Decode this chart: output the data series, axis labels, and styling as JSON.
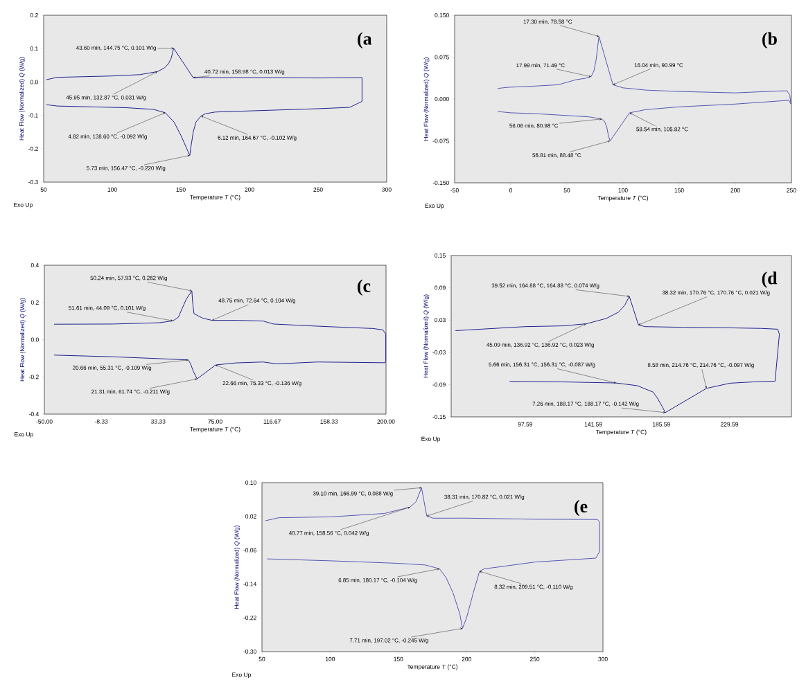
{
  "chart_data": [
    {
      "type": "line",
      "title": "(a",
      "xlabel": "Temperature *T* (°C)",
      "ylabel": "Heat Flow (Normalized) *Q* (W/g)",
      "color": "#1f1f8f",
      "xlim": [
        50,
        300
      ],
      "xticks": [
        50,
        100,
        150,
        200,
        250,
        300
      ],
      "ylim": [
        -0.3,
        0.2
      ],
      "yticks": [
        -0.3,
        -0.2,
        -0.1,
        {
          "value": 0,
          "label": "0.0"
        },
        0.1,
        0.2
      ],
      "x": [
        52,
        60,
        80,
        100,
        120,
        132.87,
        138,
        141,
        143,
        144.75,
        158.98,
        170,
        200,
        217,
        250,
        282,
        282,
        273,
        250,
        220,
        190,
        175,
        168,
        164.67,
        161,
        159,
        157.5,
        156.47,
        150,
        145,
        138.6,
        130,
        110,
        80,
        60,
        52
      ],
      "values": [
        0.007,
        0.014,
        0.016,
        0.018,
        0.022,
        0.031,
        0.042,
        0.055,
        0.072,
        0.101,
        0.013,
        0.013,
        0.013,
        0.013,
        0.012,
        0.013,
        -0.058,
        -0.076,
        -0.08,
        -0.084,
        -0.088,
        -0.09,
        -0.095,
        -0.102,
        -0.12,
        -0.15,
        -0.19,
        -0.22,
        -0.16,
        -0.12,
        -0.092,
        -0.082,
        -0.077,
        -0.074,
        -0.072,
        -0.068
      ],
      "annotations": [
        {
          "text": "43.60 min, 144.75 °C, 0.101 W/g",
          "x": 144.75,
          "y": 0.101
        },
        {
          "text": "40.72 min, 158.98 °C, 0.013 W/g",
          "x": 158.98,
          "y": 0.013
        },
        {
          "text": "45.95 min, 132.87 °C, 0.031 W/g",
          "x": 132.87,
          "y": 0.031
        },
        {
          "text": "4.82 min, 138.60 °C, -0.092 W/g",
          "x": 138.6,
          "y": -0.092
        },
        {
          "text": "6.12 min, 164.67 °C, -0.102 W/g",
          "x": 164.67,
          "y": -0.102
        },
        {
          "text": "5.73 min, 156.47 °C, -0.220 W/g",
          "x": 156.47,
          "y": -0.22
        },
        "Exo Up"
      ]
    },
    {
      "type": "line",
      "title": "(b",
      "xlabel": "Temperature *T* (°C)",
      "ylabel": "Heat Flow (Normalized) *Q* (W/g)",
      "color": "#5555b5",
      "xlim": [
        -50,
        250
      ],
      "xticks": [
        -50,
        0,
        50,
        100,
        150,
        200,
        250
      ],
      "ylim": [
        -0.15,
        0.15
      ],
      "yticks": [
        {
          "value": -0.15,
          "label": "-0.150"
        },
        -0.075,
        {
          "value": 0,
          "label": "0.000"
        },
        0.075,
        {
          "value": 0.15,
          "label": "0.150"
        }
      ],
      "x": [
        -11.5,
        -2.6,
        20,
        42,
        58,
        66,
        71.49,
        74,
        76,
        77.5,
        78.58,
        90.99,
        100,
        120,
        150,
        200,
        240,
        246,
        248.5,
        249.5,
        247.8,
        200,
        150,
        120,
        105.82,
        88.48,
        87,
        85.5,
        83.5,
        80.98,
        70,
        50,
        20,
        0,
        -11.5
      ],
      "values": [
        0.019,
        0.021,
        0.023,
        0.0255,
        0.0345,
        0.037,
        0.04,
        0.05,
        0.07,
        0.095,
        0.112,
        0.0255,
        0.02,
        0.016,
        0.0135,
        0.011,
        0.0145,
        0.0147,
        0.007,
        -0.009,
        -0.0023,
        -0.009,
        -0.014,
        -0.019,
        -0.0247,
        -0.075,
        -0.066,
        -0.05,
        -0.04,
        -0.0358,
        -0.032,
        -0.0295,
        -0.026,
        -0.0247,
        -0.0224
      ],
      "annotations": [
        {
          "text": "17.30 min, 78.58 °C",
          "x": 78.58,
          "y": 0.112
        },
        {
          "text": "17.99 min, 71.49 °C",
          "x": 71.49,
          "y": 0.04
        },
        {
          "text": "16.04 min, 90.99 °C",
          "x": 90.99,
          "y": 0.0255
        },
        {
          "text": "56.06 min, 80.98 °C",
          "x": 80.98,
          "y": -0.0358
        },
        {
          "text": "58.54 min, 105.82 °C",
          "x": 105.82,
          "y": -0.0247
        },
        {
          "text": "56.81 min, 88.48 °C",
          "x": 88.48,
          "y": -0.075
        },
        "Exo Up"
      ]
    },
    {
      "type": "line",
      "title": "(c",
      "xlabel": "Temperature *T* (°C)",
      "ylabel": "Heat Flow (Normalized) *Q* (W/g)",
      "color": "#1f1f8f",
      "xlim": [
        -50,
        200
      ],
      "xticks": [
        {
          "value": -50,
          "label": "-50.00"
        },
        -8.33,
        33.33,
        {
          "value": 75,
          "label": "75.00"
        },
        116.67,
        158.33,
        {
          "value": 200,
          "label": "200.00"
        }
      ],
      "ylim": [
        -0.4,
        0.4
      ],
      "yticks": [
        -0.4,
        -0.2,
        {
          "value": 0,
          "label": "0.0"
        },
        0.2,
        0.4
      ],
      "x": [
        -42.9,
        0,
        34,
        44.09,
        48,
        51,
        54,
        57.93,
        58.5,
        59.5,
        62,
        66,
        72.64,
        90,
        110,
        117.7,
        151.2,
        190.2,
        197.6,
        199.8,
        199.8,
        199.4,
        150,
        120,
        110,
        90,
        75.33,
        61.74,
        59,
        57,
        55.31,
        34,
        0,
        -42.9
      ],
      "values": [
        0.083,
        0.084,
        0.091,
        0.101,
        0.12,
        0.17,
        0.22,
        0.262,
        0.2,
        0.14,
        0.13,
        0.115,
        0.104,
        0.104,
        0.1,
        0.084,
        0.072,
        0.06,
        0.053,
        0.03,
        -0.113,
        -0.124,
        -0.12,
        -0.13,
        -0.12,
        -0.125,
        -0.136,
        -0.211,
        -0.17,
        -0.13,
        -0.109,
        -0.102,
        -0.092,
        -0.083
      ],
      "annotations": [
        {
          "text": "50.24 min, 57.93 °C, 0.262 W/g",
          "x": 57.93,
          "y": 0.262
        },
        {
          "text": "51.61 min, 44.09 °C, 0.101 W/g",
          "x": 44.09,
          "y": 0.101
        },
        {
          "text": "48.75 min, 72.64 °C, 0.104 W/g",
          "x": 72.64,
          "y": 0.104
        },
        {
          "text": "20.66 min, 55.31 °C, -0.109 W/g",
          "x": 55.31,
          "y": -0.109
        },
        {
          "text": "21.31 min, 61.74 °C, -0.211 W/g",
          "x": 61.74,
          "y": -0.211
        },
        {
          "text": "22.66 min, 75.33 °C, -0.136 W/g",
          "x": 75.33,
          "y": -0.136
        },
        "Exo Up"
      ]
    },
    {
      "type": "line",
      "title": "(d",
      "xlabel": "Temperature *T* (°C)",
      "ylabel": "Heat Flow (Normalized) *Q* (W/g)",
      "color": "#1f1f8f",
      "xlim": [
        49.7,
        269.7
      ],
      "xticks": [
        97.59,
        141.59,
        185.59,
        229.59
      ],
      "ylim": [
        -0.15,
        0.15
      ],
      "yticks": [
        -0.15,
        -0.09,
        -0.03,
        0.03,
        0.09,
        0.15
      ],
      "x": [
        52.5,
        97.6,
        122,
        136.92,
        150,
        158,
        162,
        164.88,
        170.76,
        175,
        200,
        230,
        250.2,
        260.8,
        261.9,
        259.1,
        245,
        230,
        214.76,
        188.17,
        186,
        183,
        180.3,
        170,
        156.31,
        121.8,
        87.5
      ],
      "values": [
        0.0103,
        0.0178,
        0.0192,
        0.023,
        0.033,
        0.045,
        0.058,
        0.074,
        0.021,
        0.0178,
        0.0165,
        0.0155,
        0.0145,
        0.013,
        0.0037,
        -0.0836,
        -0.085,
        -0.0874,
        -0.097,
        -0.142,
        -0.13,
        -0.115,
        -0.104,
        -0.092,
        -0.087,
        -0.085,
        -0.084
      ],
      "annotations": [
        {
          "text": "39.52 min, 164.88 °C, 164.88 °C, 0.074 W/g",
          "x": 164.88,
          "y": 0.074
        },
        {
          "text": "38.32 min, 170.76 °C, 170.76 °C, 0.021 W/g",
          "x": 170.76,
          "y": 0.021
        },
        {
          "text": "45.09 min, 136.92 °C, 136.92 °C, 0.023 W/g",
          "x": 136.92,
          "y": 0.023
        },
        {
          "text": "5.66 min, 156.31 °C, 156.31 °C, -0.087 W/g",
          "x": 156.31,
          "y": -0.087
        },
        {
          "text": "8.58 min, 214.76 °C, 214.76 °C, -0.097 W/g",
          "x": 214.76,
          "y": -0.097
        },
        {
          "text": "7.26 min, 188.17 °C, 188.17 °C, -0.142 W/g",
          "x": 188.17,
          "y": -0.142
        },
        "Exo Up"
      ]
    },
    {
      "type": "line",
      "title": "(e",
      "xlabel": "Temperature *T* (°C)",
      "ylabel": "Heat Flow (Normalized) *Q* (W/g)",
      "color": "#5555b5",
      "xlim": [
        50,
        300
      ],
      "xticks": [
        50,
        100,
        150,
        200,
        250,
        300
      ],
      "ylim": [
        -0.3,
        0.1
      ],
      "yticks": [
        {
          "value": -0.3,
          "label": "-0.30"
        },
        -0.22,
        -0.14,
        -0.06,
        0.02,
        {
          "value": 0.1,
          "label": "0.10"
        }
      ],
      "x": [
        52.5,
        62.3,
        100,
        139.6,
        158.56,
        163,
        166.99,
        170.82,
        175.5,
        200,
        250,
        296,
        297.5,
        297.5,
        294.7,
        250,
        222.6,
        213,
        209.51,
        205,
        200,
        197.02,
        195,
        190,
        185,
        180.17,
        170,
        150,
        100,
        53.8
      ],
      "values": [
        0.0098,
        0.017,
        0.019,
        0.027,
        0.042,
        0.055,
        0.088,
        0.021,
        0.0159,
        0.016,
        0.0134,
        0.0128,
        0.0067,
        -0.0634,
        -0.0787,
        -0.088,
        -0.1,
        -0.104,
        -0.11,
        -0.16,
        -0.22,
        -0.245,
        -0.21,
        -0.16,
        -0.125,
        -0.104,
        -0.095,
        -0.091,
        -0.085,
        -0.0805
      ],
      "annotations": [
        {
          "text": "39.10 min, 166.99 °C, 0.088 W/g",
          "x": 166.99,
          "y": 0.088
        },
        {
          "text": "40.77 min, 158.56 °C, 0.042 W/g",
          "x": 158.56,
          "y": 0.042
        },
        {
          "text": "38.31 min, 170.82 °C, 0.021 W/g",
          "x": 170.82,
          "y": 0.021
        },
        {
          "text": "6.85 min, 180.17 °C, -0.104 W/g",
          "x": 180.17,
          "y": -0.104
        },
        {
          "text": "8.32 min, 209.51 °C, -0.110 W/g",
          "x": 209.51,
          "y": -0.11
        },
        {
          "text": "7.71 min, 197.02 °C, -0.245 W/g",
          "x": 197.02,
          "y": -0.245
        },
        "Exo Up"
      ]
    }
  ]
}
